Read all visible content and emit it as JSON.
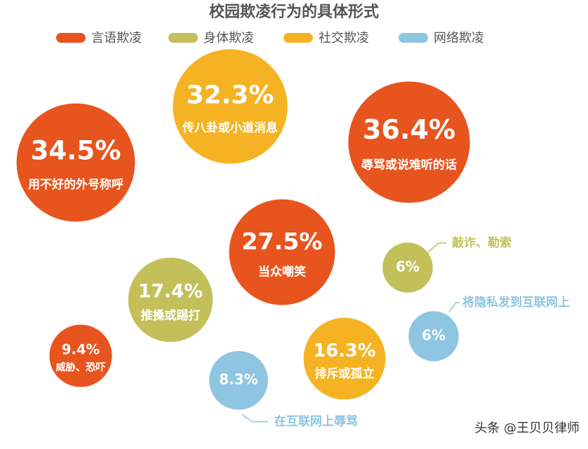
{
  "chart_data": {
    "type": "bubble",
    "title": "校园欺凌行为的具体形式",
    "series": [
      {
        "name": "言语欺凌",
        "color": "#e8541e",
        "values": [
          34.5,
          36.4,
          27.5,
          9.4
        ],
        "value_labels": [
          "34.5%",
          "36.4%",
          "27.5%",
          "9.4%"
        ],
        "labels": [
          "用不好的外号称呼",
          "辱骂或说难听的话",
          "当众嘲笑",
          "威胁、恐吓"
        ]
      },
      {
        "name": "身体欺凌",
        "color": "#c3c05a",
        "values": [
          17.4,
          6
        ],
        "value_labels": [
          "17.4%",
          "6%"
        ],
        "labels": [
          "推搡或踢打",
          "敲诈、勒索"
        ]
      },
      {
        "name": "社交欺凌",
        "color": "#f5b324",
        "values": [
          32.3,
          16.3
        ],
        "value_labels": [
          "32.3%",
          "16.3%"
        ],
        "labels": [
          "传八卦或小道消息",
          "排斥或孤立"
        ]
      },
      {
        "name": "网络欺凌",
        "color": "#8ec5e0",
        "values": [
          8.3,
          6
        ],
        "value_labels": [
          "8.3%",
          "6%"
        ],
        "labels": [
          "在互联网上辱骂",
          "将隐私发到互联网上"
        ]
      }
    ]
  },
  "watermark": "头条 @王贝贝律师"
}
